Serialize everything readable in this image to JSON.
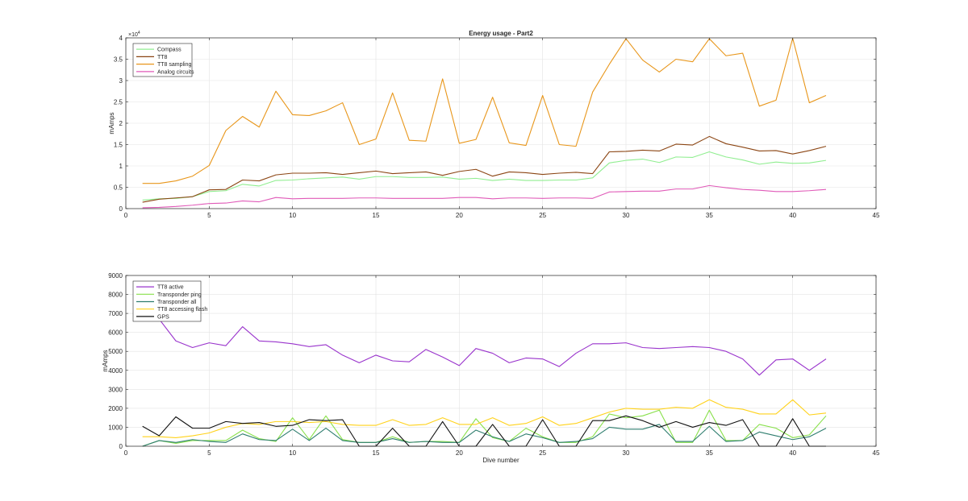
{
  "chart_data": [
    {
      "type": "line",
      "title": "Energy usage - Part2",
      "xlabel": "",
      "ylabel": "mAmps",
      "xlim": [
        0,
        45
      ],
      "ylim": [
        0,
        40000
      ],
      "xticks": [
        0,
        5,
        10,
        15,
        20,
        25,
        30,
        35,
        40,
        45
      ],
      "yticks": [
        0,
        5000,
        10000,
        15000,
        20000,
        25000,
        30000,
        35000,
        40000
      ],
      "ytick_labels": [
        "0",
        "0.5",
        "1",
        "1.5",
        "2",
        "2.5",
        "3",
        "3.5",
        "4"
      ],
      "y_exponent_label": "×10",
      "y_exponent_power": "4",
      "grid": true,
      "legend_position": "top-left",
      "x": [
        1,
        2,
        3,
        4,
        5,
        6,
        7,
        8,
        9,
        10,
        11,
        12,
        13,
        14,
        15,
        16,
        17,
        18,
        19,
        20,
        21,
        22,
        23,
        24,
        25,
        26,
        27,
        28,
        29,
        30,
        31,
        32,
        33,
        34,
        35,
        36,
        37,
        38,
        39,
        40,
        41,
        42
      ],
      "series": [
        {
          "name": "Compass",
          "color": "#90ee90",
          "values": [
            2000,
            2300,
            2400,
            2800,
            4000,
            4200,
            5700,
            5300,
            6600,
            6700,
            7000,
            7200,
            7400,
            6900,
            7500,
            7500,
            7300,
            7300,
            7400,
            6900,
            7100,
            6600,
            6900,
            6600,
            6600,
            6700,
            6700,
            7200,
            10700,
            11300,
            11600,
            10800,
            12100,
            12000,
            13300,
            12100,
            11400,
            10400,
            10900,
            10600,
            10700,
            11300
          ]
        },
        {
          "name": "TT8",
          "color": "#8b4513",
          "values": [
            1500,
            2200,
            2500,
            2800,
            4400,
            4500,
            6700,
            6500,
            7900,
            8300,
            8300,
            8400,
            8000,
            8400,
            8800,
            8200,
            8400,
            8600,
            7800,
            8700,
            9200,
            7600,
            8600,
            8400,
            8000,
            8300,
            8500,
            8200,
            13300,
            13400,
            13700,
            13500,
            15100,
            14900,
            16900,
            15200,
            14400,
            13500,
            13600,
            12800,
            13600,
            14600
          ]
        },
        {
          "name": "TT8 sampling",
          "color": "#e8961a",
          "values": [
            5900,
            5900,
            6500,
            7600,
            10100,
            18300,
            21600,
            19100,
            27500,
            22000,
            21800,
            22900,
            24800,
            15000,
            16300,
            27100,
            16000,
            15800,
            30400,
            15300,
            16200,
            26100,
            15400,
            14800,
            26500,
            15000,
            14600,
            27300,
            33800,
            39800,
            34800,
            32000,
            35000,
            34400,
            39800,
            35800,
            36400,
            24000,
            25400,
            39900,
            24800,
            26500
          ]
        },
        {
          "name": "Analog circuits",
          "color": "#e05ab8",
          "values": [
            200,
            300,
            500,
            800,
            1200,
            1300,
            1800,
            1600,
            2600,
            2300,
            2400,
            2400,
            2400,
            2500,
            2500,
            2400,
            2400,
            2400,
            2400,
            2600,
            2600,
            2300,
            2500,
            2500,
            2400,
            2500,
            2500,
            2400,
            3900,
            4000,
            4100,
            4100,
            4600,
            4600,
            5400,
            4900,
            4500,
            4300,
            4000,
            4000,
            4200,
            4500
          ]
        }
      ]
    },
    {
      "type": "line",
      "title": "",
      "xlabel": "Dive number",
      "ylabel": "mAmps",
      "xlim": [
        0,
        45
      ],
      "ylim": [
        0,
        9000
      ],
      "xticks": [
        0,
        5,
        10,
        15,
        20,
        25,
        30,
        35,
        40,
        45
      ],
      "yticks": [
        0,
        1000,
        2000,
        3000,
        4000,
        5000,
        6000,
        7000,
        8000,
        9000
      ],
      "ytick_labels": [
        "0",
        "1000",
        "2000",
        "3000",
        "4000",
        "5000",
        "6000",
        "7000",
        "8000",
        "9000"
      ],
      "grid": true,
      "legend_position": "top-left",
      "x": [
        1,
        2,
        3,
        4,
        5,
        6,
        7,
        8,
        9,
        10,
        11,
        12,
        13,
        14,
        15,
        16,
        17,
        18,
        19,
        20,
        21,
        22,
        23,
        24,
        25,
        26,
        27,
        28,
        29,
        30,
        31,
        32,
        33,
        34,
        35,
        36,
        37,
        38,
        39,
        40,
        41,
        42
      ],
      "series": [
        {
          "name": "TT8 active",
          "color": "#9933cc",
          "values": [
            7900,
            6700,
            5550,
            5200,
            5450,
            5300,
            6300,
            5550,
            5500,
            5400,
            5250,
            5350,
            4800,
            4400,
            4800,
            4500,
            4450,
            5100,
            4700,
            4250,
            5150,
            4900,
            4400,
            4650,
            4600,
            4200,
            4900,
            5400,
            5400,
            5450,
            5200,
            5150,
            5200,
            5250,
            5200,
            5000,
            4600,
            3750,
            4550,
            4600,
            4000,
            4600
          ]
        },
        {
          "name": "Transponder ping",
          "color": "#88e04a",
          "values": [
            0,
            300,
            150,
            300,
            300,
            300,
            850,
            400,
            250,
            1500,
            350,
            1600,
            350,
            200,
            200,
            500,
            200,
            250,
            250,
            200,
            1450,
            450,
            250,
            950,
            500,
            200,
            200,
            500,
            1700,
            1500,
            1600,
            1900,
            200,
            200,
            1900,
            300,
            300,
            1150,
            950,
            450,
            600,
            1600
          ]
        },
        {
          "name": "Transponder all",
          "color": "#2e7d6e",
          "values": [
            0,
            300,
            200,
            350,
            250,
            200,
            650,
            350,
            300,
            900,
            300,
            950,
            300,
            200,
            200,
            400,
            200,
            250,
            200,
            200,
            850,
            500,
            250,
            650,
            450,
            200,
            250,
            400,
            1000,
            900,
            900,
            1150,
            250,
            250,
            1050,
            250,
            300,
            750,
            550,
            350,
            500,
            950
          ]
        },
        {
          "name": "TT8 accessing flash",
          "color": "#ffd21a",
          "values": [
            500,
            500,
            450,
            550,
            700,
            1000,
            1200,
            1150,
            1300,
            1300,
            1250,
            1300,
            1150,
            1100,
            1100,
            1400,
            1100,
            1150,
            1500,
            1150,
            1150,
            1500,
            1100,
            1200,
            1550,
            1100,
            1200,
            1500,
            1800,
            2000,
            1950,
            1950,
            2050,
            2000,
            2450,
            2050,
            1950,
            1700,
            1700,
            2450,
            1650,
            1750
          ]
        },
        {
          "name": "GPS",
          "color": "#111111",
          "values": [
            1050,
            550,
            1550,
            950,
            950,
            1300,
            1200,
            1250,
            1050,
            1100,
            1400,
            1350,
            1400,
            0,
            0,
            950,
            0,
            0,
            1300,
            0,
            0,
            1150,
            0,
            0,
            1400,
            0,
            0,
            1350,
            1350,
            1600,
            1350,
            1000,
            1300,
            1000,
            1250,
            1100,
            1400,
            0,
            0,
            1450,
            0,
            0
          ]
        }
      ]
    }
  ]
}
